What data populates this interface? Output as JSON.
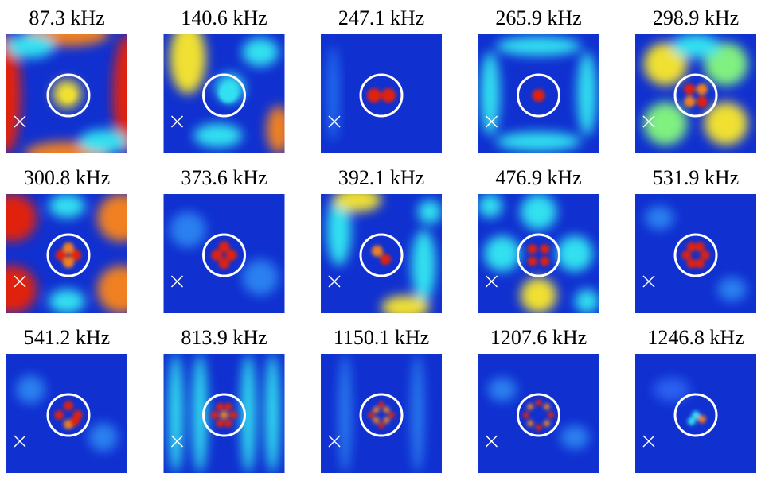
{
  "panels": [
    {
      "label": "87.3 kHz"
    },
    {
      "label": "140.6 kHz"
    },
    {
      "label": "247.1 kHz"
    },
    {
      "label": "265.9 kHz"
    },
    {
      "label": "298.9 kHz"
    },
    {
      "label": "300.8 kHz"
    },
    {
      "label": "373.6 kHz"
    },
    {
      "label": "392.1 kHz"
    },
    {
      "label": "476.9 kHz"
    },
    {
      "label": "531.9 kHz"
    },
    {
      "label": "541.2 kHz"
    },
    {
      "label": "813.9 kHz"
    },
    {
      "label": "1150.1 kHz"
    },
    {
      "label": "1207.6 kHz"
    },
    {
      "label": "1246.8 kHz"
    }
  ]
}
